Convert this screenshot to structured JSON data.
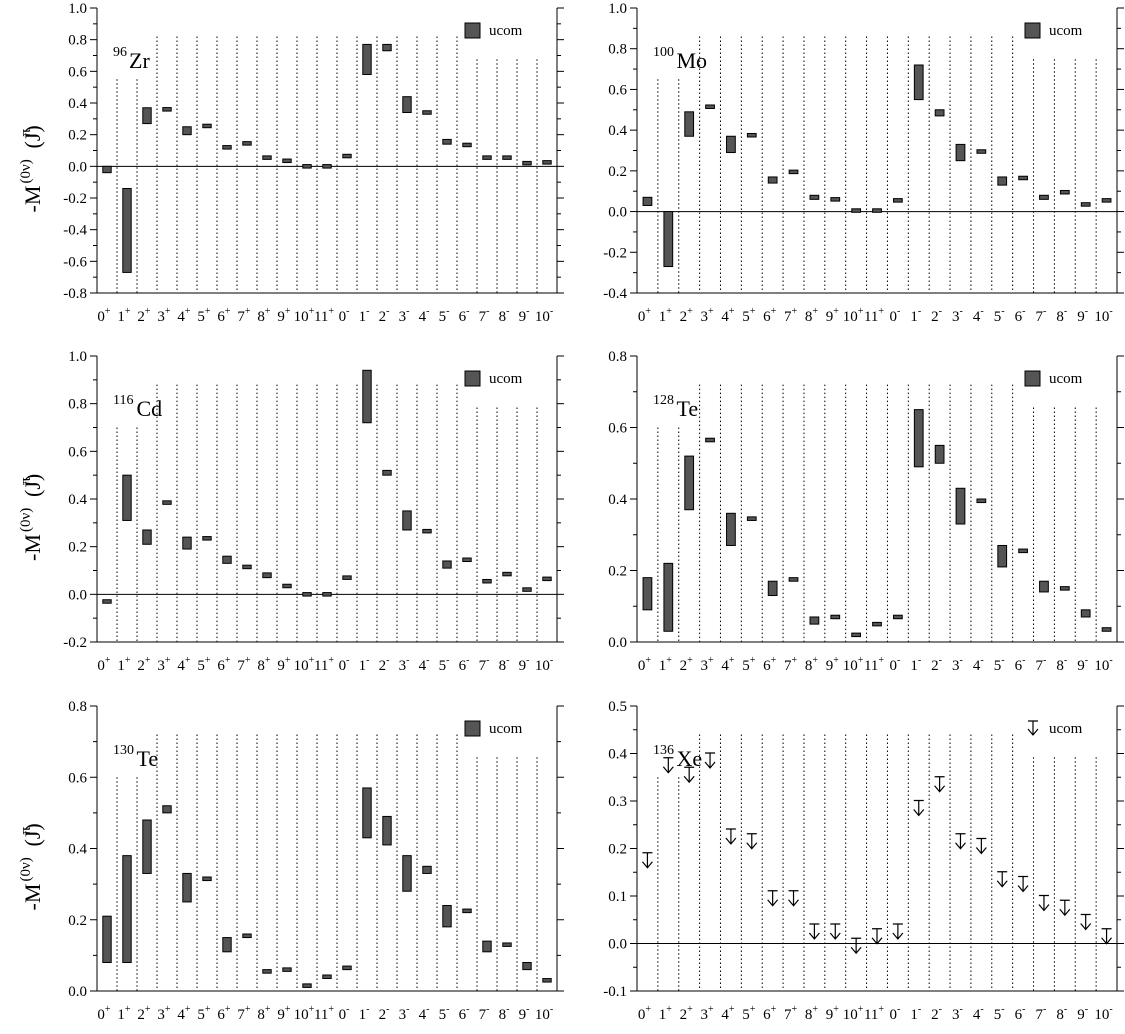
{
  "figure": {
    "categories": [
      "0+",
      "1+",
      "2+",
      "3+",
      "4+",
      "5+",
      "6+",
      "7+",
      "8+",
      "9+",
      "10+",
      "11+",
      "0-",
      "1-",
      "2-",
      "3-",
      "4-",
      "5-",
      "6-",
      "7-",
      "8-",
      "9-",
      "10-"
    ],
    "ylabel": "-M(0ν)(Jπ)",
    "legend_label": "ucom",
    "colors": {
      "bar_fill": "#555555",
      "bar_stroke": "#000000",
      "axis": "#000000",
      "gridline": "#000000"
    }
  },
  "chart_data": [
    {
      "type": "bar",
      "nucleus": {
        "mass": "96",
        "symbol": "Zr"
      },
      "ylim": [
        -0.8,
        1.0
      ],
      "yticks": [
        -0.8,
        -0.6,
        -0.4,
        -0.2,
        0.0,
        0.2,
        0.4,
        0.6,
        0.8,
        1.0
      ],
      "ytick_labels": [
        "-0.8",
        "-0.6",
        "-0.4",
        "-0.2",
        "0.0",
        "0.2",
        "0.4",
        "0.6",
        "0.8",
        "1.0"
      ],
      "legend_style": "box",
      "ranges": [
        [
          -0.04,
          0.0
        ],
        [
          -0.67,
          -0.14
        ],
        [
          0.27,
          0.37
        ],
        [
          0.35,
          0.37
        ],
        [
          0.2,
          0.25
        ],
        [
          0.25,
          0.26
        ],
        [
          0.11,
          0.13
        ],
        [
          0.14,
          0.15
        ],
        [
          0.05,
          0.06
        ],
        [
          0.03,
          0.04
        ],
        [
          0.0,
          0.0
        ],
        [
          0.0,
          0.0
        ],
        [
          0.06,
          0.07
        ],
        [
          0.58,
          0.77
        ],
        [
          0.73,
          0.77
        ],
        [
          0.34,
          0.44
        ],
        [
          0.33,
          0.35
        ],
        [
          0.14,
          0.17
        ],
        [
          0.13,
          0.14
        ],
        [
          0.05,
          0.06
        ],
        [
          0.05,
          0.06
        ],
        [
          0.02,
          0.02
        ],
        [
          0.02,
          0.03
        ]
      ]
    },
    {
      "type": "bar",
      "nucleus": {
        "mass": "100",
        "symbol": "Mo"
      },
      "ylim": [
        -0.4,
        1.0
      ],
      "yticks": [
        -0.4,
        -0.2,
        0.0,
        0.2,
        0.4,
        0.6,
        0.8,
        1.0
      ],
      "ytick_labels": [
        "-0.4",
        "-0.2",
        "0.0",
        "0.2",
        "0.4",
        "0.6",
        "0.8",
        "1.0"
      ],
      "legend_style": "box",
      "ranges": [
        [
          0.03,
          0.07
        ],
        [
          -0.27,
          0.0
        ],
        [
          0.37,
          0.49
        ],
        [
          0.51,
          0.52
        ],
        [
          0.29,
          0.37
        ],
        [
          0.37,
          0.38
        ],
        [
          0.14,
          0.17
        ],
        [
          0.19,
          0.2
        ],
        [
          0.06,
          0.08
        ],
        [
          0.06,
          0.06
        ],
        [
          0.0,
          0.01
        ],
        [
          0.0,
          0.01
        ],
        [
          0.05,
          0.06
        ],
        [
          0.55,
          0.72
        ],
        [
          0.47,
          0.5
        ],
        [
          0.25,
          0.33
        ],
        [
          0.29,
          0.3
        ],
        [
          0.13,
          0.17
        ],
        [
          0.16,
          0.17
        ],
        [
          0.06,
          0.08
        ],
        [
          0.09,
          0.1
        ],
        [
          0.03,
          0.04
        ],
        [
          0.05,
          0.06
        ]
      ]
    },
    {
      "type": "bar",
      "nucleus": {
        "mass": "116",
        "symbol": "Cd"
      },
      "ylim": [
        -0.2,
        1.0
      ],
      "yticks": [
        -0.2,
        0.0,
        0.2,
        0.4,
        0.6,
        0.8,
        1.0
      ],
      "ytick_labels": [
        "-0.2",
        "0.0",
        "0.2",
        "0.4",
        "0.6",
        "0.8",
        "1.0"
      ],
      "legend_style": "box",
      "ranges": [
        [
          -0.03,
          -0.03
        ],
        [
          0.31,
          0.5
        ],
        [
          0.21,
          0.27
        ],
        [
          0.38,
          0.39
        ],
        [
          0.19,
          0.24
        ],
        [
          0.23,
          0.24
        ],
        [
          0.13,
          0.16
        ],
        [
          0.11,
          0.12
        ],
        [
          0.07,
          0.09
        ],
        [
          0.03,
          0.04
        ],
        [
          0.0,
          0.0
        ],
        [
          0.0,
          0.0
        ],
        [
          0.07,
          0.07
        ],
        [
          0.72,
          0.94
        ],
        [
          0.5,
          0.52
        ],
        [
          0.27,
          0.35
        ],
        [
          0.26,
          0.27
        ],
        [
          0.11,
          0.14
        ],
        [
          0.14,
          0.15
        ],
        [
          0.05,
          0.06
        ],
        [
          0.08,
          0.09
        ],
        [
          0.02,
          0.02
        ],
        [
          0.06,
          0.07
        ]
      ]
    },
    {
      "type": "bar",
      "nucleus": {
        "mass": "128",
        "symbol": "Te"
      },
      "ylim": [
        0.0,
        0.8
      ],
      "yticks": [
        0.0,
        0.2,
        0.4,
        0.6,
        0.8
      ],
      "ytick_labels": [
        "0.0",
        "0.2",
        "0.4",
        "0.6",
        "0.8"
      ],
      "legend_style": "box",
      "ranges": [
        [
          0.09,
          0.18
        ],
        [
          0.03,
          0.22
        ],
        [
          0.37,
          0.52
        ],
        [
          0.56,
          0.57
        ],
        [
          0.27,
          0.36
        ],
        [
          0.34,
          0.35
        ],
        [
          0.13,
          0.17
        ],
        [
          0.17,
          0.18
        ],
        [
          0.05,
          0.07
        ],
        [
          0.07,
          0.07
        ],
        [
          0.02,
          0.02
        ],
        [
          0.05,
          0.05
        ],
        [
          0.07,
          0.07
        ],
        [
          0.49,
          0.65
        ],
        [
          0.5,
          0.55
        ],
        [
          0.33,
          0.43
        ],
        [
          0.39,
          0.4
        ],
        [
          0.21,
          0.27
        ],
        [
          0.25,
          0.26
        ],
        [
          0.14,
          0.17
        ],
        [
          0.15,
          0.15
        ],
        [
          0.07,
          0.09
        ],
        [
          0.03,
          0.04
        ]
      ]
    },
    {
      "type": "bar",
      "nucleus": {
        "mass": "130",
        "symbol": "Te"
      },
      "ylim": [
        0.0,
        0.8
      ],
      "yticks": [
        0.0,
        0.2,
        0.4,
        0.6,
        0.8
      ],
      "ytick_labels": [
        "0.0",
        "0.2",
        "0.4",
        "0.6",
        "0.8"
      ],
      "legend_style": "box",
      "ranges": [
        [
          0.08,
          0.21
        ],
        [
          0.08,
          0.38
        ],
        [
          0.33,
          0.48
        ],
        [
          0.5,
          0.52
        ],
        [
          0.25,
          0.33
        ],
        [
          0.31,
          0.32
        ],
        [
          0.11,
          0.15
        ],
        [
          0.15,
          0.16
        ],
        [
          0.05,
          0.06
        ],
        [
          0.06,
          0.06
        ],
        [
          0.01,
          0.02
        ],
        [
          0.04,
          0.04
        ],
        [
          0.06,
          0.07
        ],
        [
          0.43,
          0.57
        ],
        [
          0.41,
          0.49
        ],
        [
          0.28,
          0.38
        ],
        [
          0.33,
          0.35
        ],
        [
          0.18,
          0.24
        ],
        [
          0.22,
          0.23
        ],
        [
          0.11,
          0.14
        ],
        [
          0.13,
          0.13
        ],
        [
          0.06,
          0.08
        ],
        [
          0.03,
          0.03
        ]
      ]
    },
    {
      "type": "scatter",
      "nucleus": {
        "mass": "136",
        "symbol": "Xe"
      },
      "ylim": [
        -0.1,
        0.5
      ],
      "yticks": [
        -0.1,
        0.0,
        0.1,
        0.2,
        0.3,
        0.4,
        0.5
      ],
      "ytick_labels": [
        "-0.1",
        "0.0",
        "0.1",
        "0.2",
        "0.3",
        "0.4",
        "0.5"
      ],
      "legend_style": "arrow",
      "marker": "down-arrow",
      "values": [
        0.17,
        0.37,
        0.35,
        0.38,
        0.22,
        0.21,
        0.09,
        0.09,
        0.02,
        0.02,
        -0.01,
        0.01,
        0.02,
        0.28,
        0.33,
        0.21,
        0.2,
        0.13,
        0.12,
        0.08,
        0.07,
        0.04,
        0.01
      ]
    }
  ]
}
